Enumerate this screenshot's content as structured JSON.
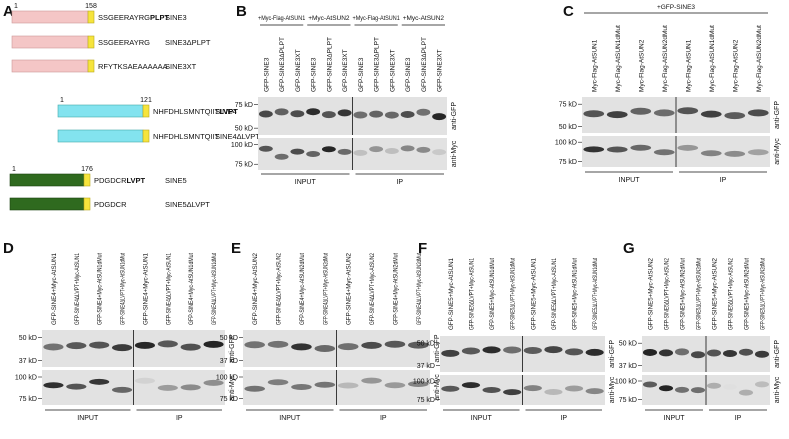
{
  "panel_a": {
    "letter": "A",
    "constructs": [
      {
        "start": "1",
        "end": "158",
        "sequence": "SSGEERAYRG",
        "motif": "PLPT",
        "name": "SINE3"
      },
      {
        "sequence": "SSGEERAYRG",
        "name": "SINE3ΔPLPT"
      },
      {
        "sequence": "RFYTKSAEAAAAAA",
        "name": "SINE3XT"
      },
      {
        "start": "1",
        "end": "121",
        "sequence": "NHFDHLSMNTQIIT",
        "motif": "LVPT",
        "name": "SINE4"
      },
      {
        "sequence": "NHFDHLSMNTQIIT",
        "name": "SINE4ΔLVPT"
      },
      {
        "start": "1",
        "end": "176",
        "sequence": "PDGDCR",
        "motif": "LVPT",
        "name": "SINE5"
      },
      {
        "sequence": "PDGDCR",
        "name": "SINE5ΔLVPT"
      }
    ]
  },
  "blots": [
    {
      "letter": "B",
      "groups": [
        {
          "header": "+Myc-Flag-AtSUN1",
          "lanes": [
            "GFP-SINE3",
            "GFP-SINE3ΔPLPT",
            "GFP-SINE3XT"
          ]
        },
        {
          "header": "+Myc-AtSUN2",
          "lanes": [
            "GFP-SINE3",
            "GFP-SINE3ΔPLPT",
            "GFP-SINE3XT"
          ]
        },
        {
          "header": "+Myc-Flag-AtSUN1",
          "lanes": [
            "GFP-SINE3",
            "GFP-SINE3ΔPLPT",
            "GFP-SINE3XT"
          ]
        },
        {
          "header": "+Myc-AtSUN2",
          "lanes": [
            "GFP-SINE3",
            "GFP-SINE3ΔPLPT",
            "GFP-SINE3XT"
          ]
        }
      ],
      "top_markers": [
        "75 kD",
        "50 kD"
      ],
      "bottom_markers": [
        "100 kD",
        "75 kD"
      ],
      "top_antibody": "anti-GFP",
      "bottom_antibody": "anti-Myc",
      "sections": [
        "INPUT",
        "IP"
      ]
    },
    {
      "letter": "C",
      "header": "+GFP-SINE3",
      "lanes": [
        "Myc-Flag-AtSUN1",
        "Myc-Flag-AtSUN1dMut",
        "Myc-Flag-AtSUN2",
        "Myc-Flag-AtSUN2dMut",
        "Myc-Flag-AtSUN1",
        "Myc-Flag-AtSUN1dMut",
        "Myc-Flag-AtSUN2",
        "Myc-Flag-AtSUN2dMut"
      ],
      "top_markers": [
        "75 kD",
        "50 kD"
      ],
      "bottom_markers": [
        "100 kD",
        "75 kD"
      ],
      "top_antibody": "anti-GFP",
      "bottom_antibody": "anti-Myc",
      "sections": [
        "INPUT",
        "IP"
      ]
    },
    {
      "letter": "D",
      "lanes": [
        "GFP-SINE4+Myc-AtSUN1",
        "GFP-SINE4ΔLVPT+Myc-AtSUN1",
        "GFP-SINE4+Myc-AtSUN1dMut",
        "GFP-SINE4ΔLVPT+Myc-AtSUN1dMut",
        "GFP-SINE4+Myc-AtSUN1",
        "GFP-SINE4ΔLVPT+Myc-AtSUN1",
        "GFP-SINE4+Myc-AtSUN1dMut",
        "GFP-SINE4ΔLVPT+Myc-AtSUN1dMut"
      ],
      "top_markers": [
        "50 kD",
        "37 kD"
      ],
      "bottom_markers": [
        "100 kD",
        "75 kD"
      ],
      "top_antibody": "anti-GFP",
      "bottom_antibody": "anti-Myc",
      "sections": [
        "INPUT",
        "IP"
      ]
    },
    {
      "letter": "E",
      "lanes": [
        "GFP-SINE4+Myc-AtSUN2",
        "GFP-SINE4ΔLVPT+Myc-AtSUN2",
        "GFP-SINE4+Myc-AtSUN2dMut",
        "GFP-SINE4ΔLVPT+Myc-AtSUN2dMut",
        "GFP-SINE4+Myc-AtSUN2",
        "GFP-SINE4ΔLVPT+Myc-AtSUN2",
        "GFP-SINE4+Myc-AtSUN2dMut",
        "GFP-SINE4ΔLVPT+Myc-AtSUN2dMut"
      ],
      "top_markers": [
        "50 kD",
        "37 kD"
      ],
      "bottom_markers": [
        "100 kD",
        "75 kD"
      ],
      "top_antibody": "anti-GFP",
      "bottom_antibody": "anti-Myc",
      "sections": [
        "INPUT",
        "IP"
      ]
    },
    {
      "letter": "F",
      "lanes": [
        "GFP-SINE5+Myc-AtSUN1",
        "GFP-SINE5ΔLVPT+Myc-AtSUN1",
        "GFP-SINE5+Myc-AtSUN1dMut",
        "GFP-SINE5ΔLVPT+Myc-AtSUN1dMut",
        "GFP-SINE5+Myc-AtSUN1",
        "GFP-SINE5ΔLVPT+Myc-AtSUN1",
        "GFP-SINE5+Myc-AtSUN1dMut",
        "GFP-SINE5ΔLVPT+Myc-AtSUN1dMut"
      ],
      "top_markers": [
        "50 kD",
        "37 kD"
      ],
      "bottom_markers": [
        "100 kD",
        "75 kD"
      ],
      "top_antibody": "anti-GFP",
      "bottom_antibody": "anti-Myc",
      "sections": [
        "INPUT",
        "IP"
      ]
    },
    {
      "letter": "G",
      "lanes": [
        "GFP-SINE5+Myc-AtSUN2",
        "GFP-SINE5ΔLVPT+Myc-AtSUN2",
        "GFP-SINE5+Myc-AtSUN2dMut",
        "GFP-SINE5ΔLVPT+Myc-AtSUN2dMut",
        "GFP-SINE5+Myc-AtSUN2",
        "GFP-SINE5ΔLVPT+Myc-AtSUN2",
        "GFP-SINE5+Myc-AtSUN2dMut",
        "GFP-SINE5ΔLVPT+Myc-AtSUN2dMut"
      ],
      "top_markers": [
        "50 kD",
        "37 kD"
      ],
      "bottom_markers": [
        "100 kD",
        "75 kD"
      ],
      "top_antibody": "anti-GFP",
      "bottom_antibody": "anti-Myc",
      "sections": [
        "INPUT",
        "IP"
      ]
    }
  ]
}
